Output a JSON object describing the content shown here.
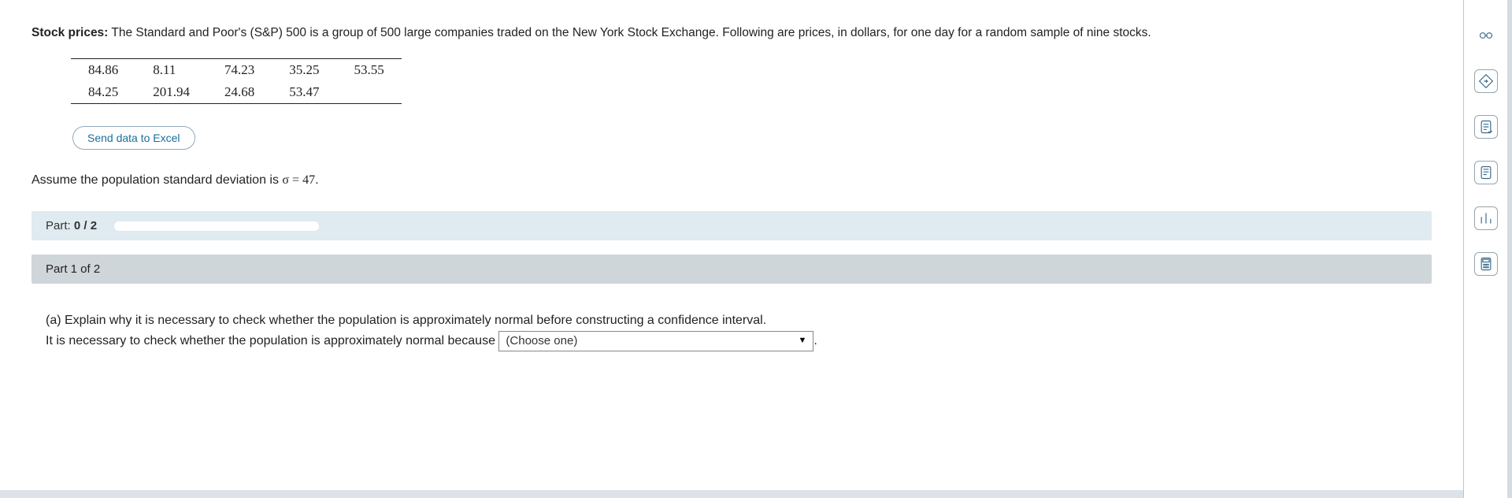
{
  "intro": {
    "strong_label": "Stock prices:",
    "text": " The Standard and Poor's (S&P) 500 is a group of 500 large companies traded on the New York Stock Exchange. Following are prices, in dollars, for one day for a random sample of nine stocks."
  },
  "data_table": {
    "rows": [
      [
        "84.86",
        "8.11",
        "74.23",
        "35.25",
        "53.55"
      ],
      [
        "84.25",
        "201.94",
        "24.68",
        "53.47",
        ""
      ]
    ],
    "styling": {
      "font_family": "Georgia, serif",
      "cell_fontsize_px": 17,
      "border_color": "#222",
      "rules": "top-and-bottom"
    }
  },
  "send_button_label": "Send data to Excel",
  "assume": {
    "prefix": "Assume the population standard deviation is ",
    "sigma_expr": "σ = 47",
    "suffix": "."
  },
  "progress": {
    "prefix": "Part: ",
    "value_label": "0 / 2",
    "fill_ratio": 0.0,
    "bg_color": "#dfeaf1",
    "track_color": "#ffffff"
  },
  "part_header": {
    "label": "Part 1 of 2",
    "bg_color": "#cfd6da"
  },
  "question": {
    "line1": "(a) Explain why it is necessary to check whether the population is approximately normal before constructing a confidence interval.",
    "line2_prefix": "It is necessary to check whether the population is approximately normal because ",
    "dropdown_placeholder": "(Choose one)",
    "line2_suffix": "."
  },
  "toolbar_icons": [
    {
      "name": "eyeglasses-icon",
      "border": false
    },
    {
      "name": "directions-icon",
      "border": true
    },
    {
      "name": "notes-check-icon",
      "border": true
    },
    {
      "name": "book-icon",
      "border": true
    },
    {
      "name": "bar-chart-icon",
      "border": true
    },
    {
      "name": "calculator-icon",
      "border": true
    }
  ],
  "colors": {
    "accent": "#1a6f9e",
    "rail_border": "#bfc6cb",
    "icon_stroke": "#3a6a8a"
  }
}
